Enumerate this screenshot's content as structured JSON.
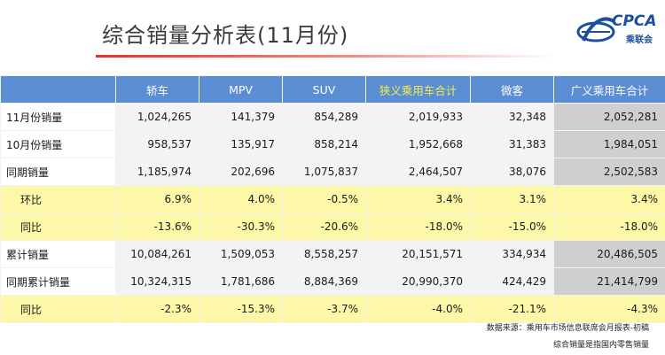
{
  "title": "综合销量分析表(11月份)",
  "logo": {
    "text": "CPCA",
    "subtext": "乘联会"
  },
  "columns": [
    "",
    "轿车",
    "MPV",
    "SUV",
    "狭义乘用车合计",
    "微客",
    "广义乘用车合计"
  ],
  "rows": [
    {
      "label": "11月份销量",
      "values": [
        "1,024,265",
        "141,379",
        "854,289",
        "2,019,933",
        "32,348",
        "2,052,281"
      ]
    },
    {
      "label": "10月份销量",
      "values": [
        "958,537",
        "135,917",
        "858,214",
        "1,952,668",
        "31,383",
        "1,984,051"
      ]
    },
    {
      "label": "同期销量",
      "values": [
        "1,185,974",
        "202,696",
        "1,075,837",
        "2,464,507",
        "38,076",
        "2,502,583"
      ]
    },
    {
      "label": "环比",
      "values": [
        "6.9%",
        "4.0%",
        "-0.5%",
        "3.4%",
        "3.1%",
        "3.4%"
      ]
    },
    {
      "label": "同比",
      "values": [
        "-13.6%",
        "-30.3%",
        "-20.6%",
        "-18.0%",
        "-15.0%",
        "-18.0%"
      ]
    },
    {
      "label": "累计销量",
      "values": [
        "10,084,261",
        "1,509,053",
        "8,558,257",
        "20,151,571",
        "334,934",
        "20,486,505"
      ]
    },
    {
      "label": "同期累计销量",
      "values": [
        "10,324,315",
        "1,781,686",
        "8,884,369",
        "20,990,370",
        "424,429",
        "21,414,799"
      ]
    },
    {
      "label": "同比",
      "values": [
        "-2.3%",
        "-15.3%",
        "-3.7%",
        "-4.0%",
        "-21.1%",
        "-4.3%"
      ]
    }
  ],
  "notes": [
    "数据来源：乘用车市场信息联席会月报表-初稿",
    "综合销量是指国内零售销量"
  ],
  "colors": {
    "header_bg": "#5b8dd2",
    "header_highlight_text": "#f4ee50",
    "ratio_row_bg": "#fdf8a7",
    "total_col_bg": "#cfcfcf",
    "title_rule": "#e3322b"
  }
}
